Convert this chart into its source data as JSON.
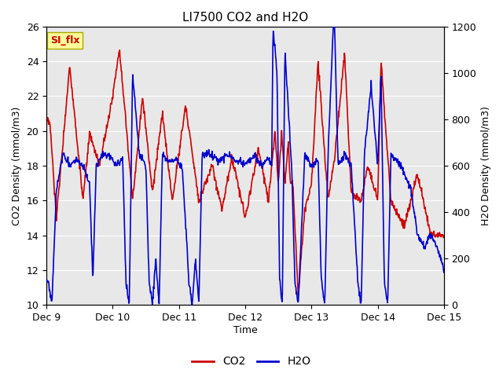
{
  "title": "LI7500 CO2 and H2O",
  "xlabel": "Time",
  "ylabel_left": "CO2 Density (mmol/m3)",
  "ylabel_right": "H2O Density (mmol/m3)",
  "ylim_left": [
    10,
    26
  ],
  "ylim_right": [
    0,
    1200
  ],
  "yticks_left": [
    10,
    12,
    14,
    16,
    18,
    20,
    22,
    24,
    26
  ],
  "yticks_right": [
    0,
    200,
    400,
    600,
    800,
    1000,
    1200
  ],
  "xtick_labels": [
    "Dec 9",
    "Dec 10",
    "Dec 11",
    "Dec 12",
    "Dec 13",
    "Dec 14",
    "Dec 15"
  ],
  "fig_facecolor": "#ffffff",
  "axes_bg_color": "#e8e8e8",
  "co2_color": "#cc0000",
  "h2o_color": "#0000cc",
  "legend_label_co2": "CO2",
  "legend_label_h2o": "H2O",
  "annotation_text": "SI_flx",
  "annotation_facecolor": "#ffff99",
  "annotation_edgecolor": "#aaa800",
  "annotation_textcolor": "#cc0000",
  "grid_color": "#ffffff",
  "linewidth": 1.2
}
